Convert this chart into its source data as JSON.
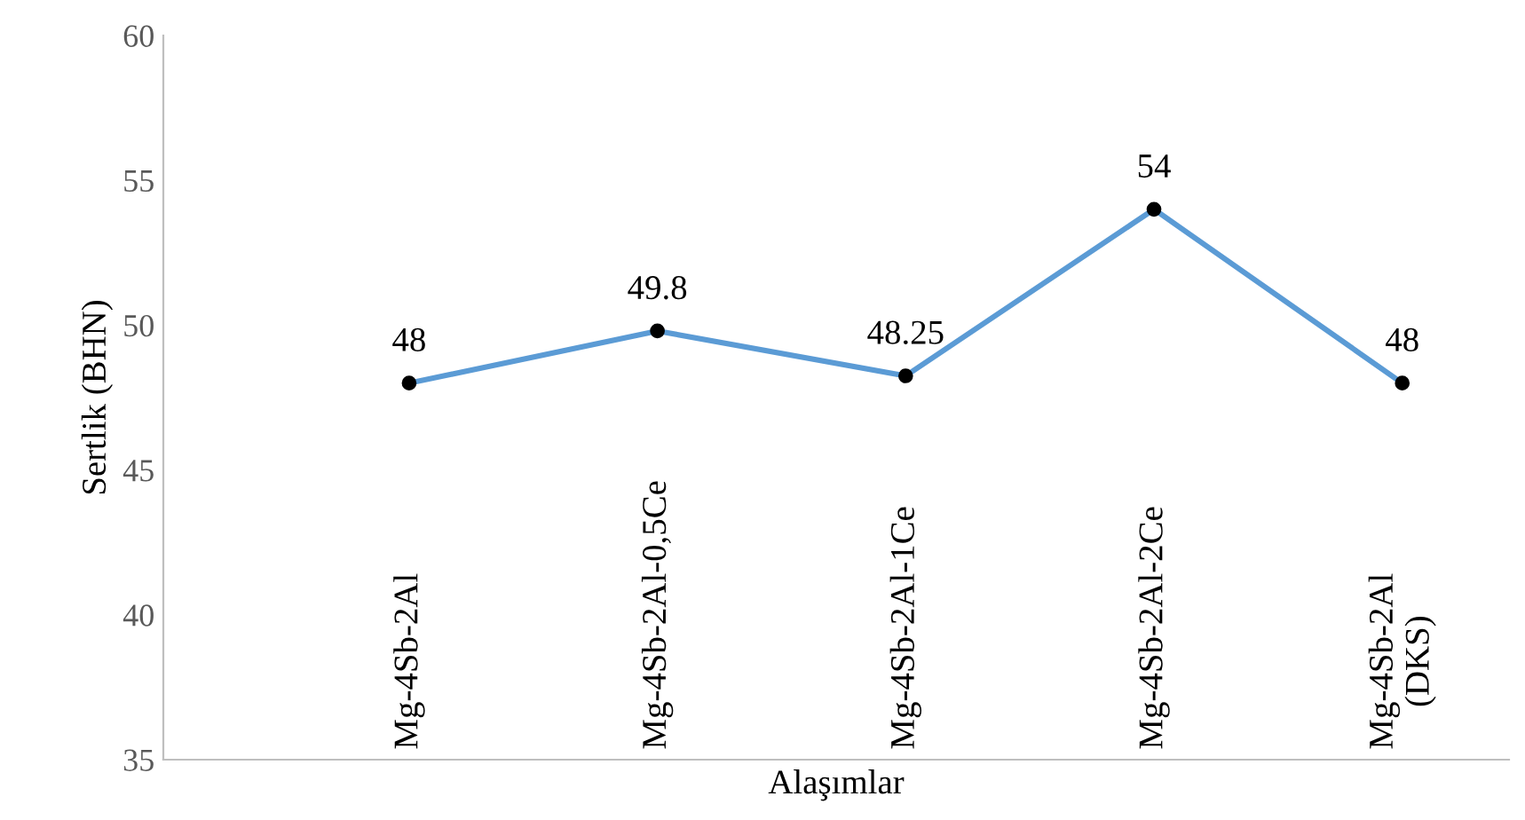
{
  "chart_data": {
    "type": "line",
    "xlabel": "Alaşımlar",
    "ylabel": "Sertlik (BHN)",
    "categories": [
      "Mg-4Sb-2Al",
      "Mg-4Sb-2Al-0,5Ce",
      "Mg-4Sb-2Al-1Ce",
      "Mg-4Sb-2Al-2Ce",
      "Mg-4Sb-2Al\n(DKS)"
    ],
    "values": [
      48,
      49.8,
      48.25,
      54,
      48
    ],
    "color": "#5b9bd5",
    "value_labels": [
      "48",
      "49.8",
      "48.25",
      "54",
      "48"
    ],
    "ylim": [
      35,
      60
    ],
    "yticks": [
      35,
      40,
      45,
      50,
      55,
      60
    ],
    "grid": false,
    "legend": false,
    "marker": "circle",
    "line_style": "solid"
  }
}
